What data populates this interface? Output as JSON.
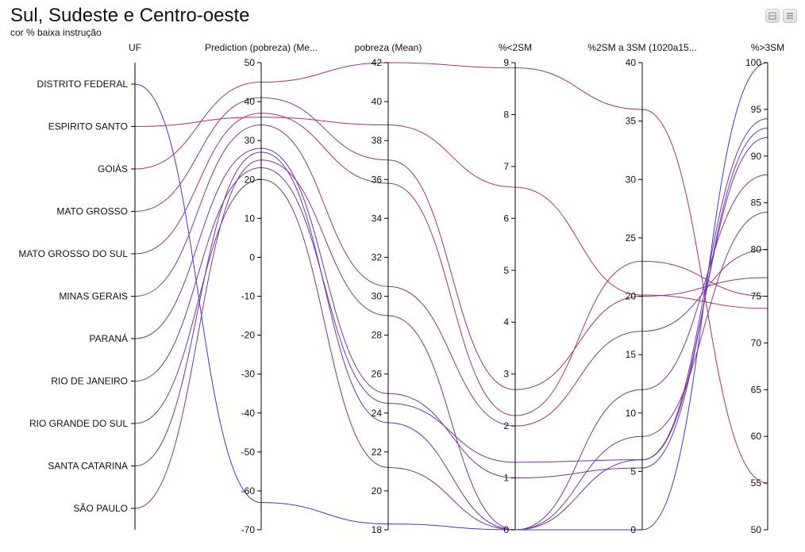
{
  "header": {
    "title": "Sul, Sudeste e Centro-oeste",
    "subtitle": "cor % baixa instrução"
  },
  "toolbar": {
    "buttons": [
      {
        "name": "minimize-button",
        "icon": "minimize-icon"
      },
      {
        "name": "menu-button",
        "icon": "hamburger-menu-icon"
      }
    ]
  },
  "chart_data": {
    "type": "parallel-coordinates",
    "color_low": "#3a3ad6",
    "color_high": "#b2306b",
    "dimensions": [
      {
        "key": "uf",
        "label": "UF",
        "kind": "category",
        "categories": [
          "DISTRITO FEDERAL",
          "ESPIRITO SANTO",
          "GOIÁS",
          "MATO GROSSO",
          "MATO GROSSO DO SUL",
          "MINAS GERAIS",
          "PARANÁ",
          "RIO DE JANEIRO",
          "RIO GRANDE DO SUL",
          "SANTA CATARINA",
          "SÃO PAULO"
        ]
      },
      {
        "key": "pred",
        "label": "Prediction (pobreza) (Me...",
        "kind": "numeric",
        "range": [
          -70,
          50
        ],
        "ticks": [
          "50",
          "40",
          "30",
          "20",
          "10",
          "0",
          "-10",
          "-20",
          "-30",
          "-40",
          "-50",
          "-60",
          "-70"
        ]
      },
      {
        "key": "pob",
        "label": "pobreza (Mean)",
        "kind": "numeric",
        "range": [
          18,
          42
        ],
        "ticks": [
          "42",
          "40",
          "38",
          "36",
          "34",
          "32",
          "30",
          "28",
          "26",
          "24",
          "22",
          "20",
          "18"
        ]
      },
      {
        "key": "lt2",
        "label": "%<2SM",
        "kind": "numeric",
        "range": [
          0,
          9
        ],
        "ticks": [
          "9",
          "8",
          "7",
          "6",
          "5",
          "4",
          "3",
          "2",
          "1",
          "0"
        ]
      },
      {
        "key": "mid",
        "label": "%2SM a 3SM (1020a15...",
        "kind": "numeric",
        "range": [
          0,
          40
        ],
        "ticks": [
          "40",
          "35",
          "30",
          "25",
          "20",
          "15",
          "10",
          "5",
          "0"
        ]
      },
      {
        "key": "gt3",
        "label": "%>3SM",
        "kind": "numeric",
        "range": [
          50,
          100
        ],
        "ticks": [
          "100",
          "95",
          "90",
          "85",
          "80",
          "75",
          "70",
          "65",
          "60",
          "55",
          "50"
        ]
      }
    ],
    "records": [
      {
        "uf": "DISTRITO FEDERAL",
        "pred": -63,
        "pob": 18.3,
        "lt2": 0.0,
        "mid": 0.0,
        "gt3": 100.0,
        "shade": 0.0
      },
      {
        "uf": "ESPIRITO SANTO",
        "pred": 36,
        "pob": 38.8,
        "lt2": 6.6,
        "mid": 20.1,
        "gt3": 73.7,
        "shade": 1.0
      },
      {
        "uf": "GOIÁS",
        "pred": 45,
        "pob": 42.0,
        "lt2": 8.9,
        "mid": 36.0,
        "gt3": 55.0,
        "shade": 0.95
      },
      {
        "uf": "MATO GROSSO",
        "pred": 41,
        "pob": 37.0,
        "lt2": 2.7,
        "mid": 20.0,
        "gt3": 77.0,
        "shade": 0.8
      },
      {
        "uf": "MATO GROSSO DO SUL",
        "pred": 37,
        "pob": 35.8,
        "lt2": 2.2,
        "mid": 23.0,
        "gt3": 75.0,
        "shade": 0.9
      },
      {
        "uf": "MINAS GERAIS",
        "pred": 34,
        "pob": 30.5,
        "lt2": 2.0,
        "mid": 17.0,
        "gt3": 80.0,
        "shade": 0.7
      },
      {
        "uf": "PARANÁ",
        "pred": 28,
        "pob": 25.0,
        "lt2": 1.0,
        "mid": 5.3,
        "gt3": 93.0,
        "shade": 0.5
      },
      {
        "uf": "RIO DE JANEIRO",
        "pred": 23,
        "pob": 24.5,
        "lt2": 1.3,
        "mid": 6.0,
        "gt3": 92.0,
        "shade": 0.45
      },
      {
        "uf": "RIO GRANDE DO SUL",
        "pred": 20,
        "pob": 21.2,
        "lt2": 0.0,
        "mid": 12.0,
        "gt3": 88.0,
        "shade": 0.6
      },
      {
        "uf": "SANTA CATARINA",
        "pred": 27,
        "pob": 23.5,
        "lt2": 0.0,
        "mid": 6.0,
        "gt3": 94.0,
        "shade": 0.4
      },
      {
        "uf": "SÃO PAULO",
        "pred": 25,
        "pob": 29.0,
        "lt2": 0.0,
        "mid": 8.0,
        "gt3": 84.0,
        "shade": 0.65
      }
    ]
  }
}
